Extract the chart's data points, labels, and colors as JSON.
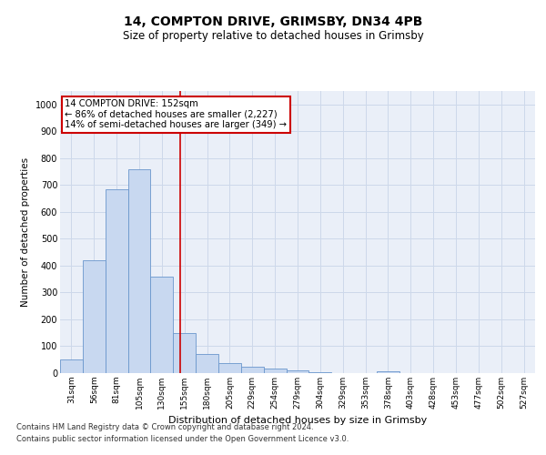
{
  "title1": "14, COMPTON DRIVE, GRIMSBY, DN34 4PB",
  "title2": "Size of property relative to detached houses in Grimsby",
  "xlabel": "Distribution of detached houses by size in Grimsby",
  "ylabel": "Number of detached properties",
  "bar_labels": [
    "31sqm",
    "56sqm",
    "81sqm",
    "105sqm",
    "130sqm",
    "155sqm",
    "180sqm",
    "205sqm",
    "229sqm",
    "254sqm",
    "279sqm",
    "304sqm",
    "329sqm",
    "353sqm",
    "378sqm",
    "403sqm",
    "428sqm",
    "453sqm",
    "477sqm",
    "502sqm",
    "527sqm"
  ],
  "bar_values": [
    50,
    420,
    685,
    760,
    360,
    150,
    70,
    38,
    25,
    17,
    10,
    5,
    0,
    0,
    8,
    0,
    0,
    0,
    0,
    0,
    0
  ],
  "bar_color": "#c8d8f0",
  "bar_edge_color": "#6a96cc",
  "property_line_x": 4.82,
  "annotation_line1": "14 COMPTON DRIVE: 152sqm",
  "annotation_line2": "← 86% of detached houses are smaller (2,227)",
  "annotation_line3": "14% of semi-detached houses are larger (349) →",
  "annotation_box_color": "#ffffff",
  "annotation_border_color": "#cc0000",
  "vline_color": "#cc0000",
  "grid_color": "#cdd8ea",
  "bg_color": "#eaeff8",
  "ylim": [
    0,
    1050
  ],
  "footnote1": "Contains HM Land Registry data © Crown copyright and database right 2024.",
  "footnote2": "Contains public sector information licensed under the Open Government Licence v3.0."
}
